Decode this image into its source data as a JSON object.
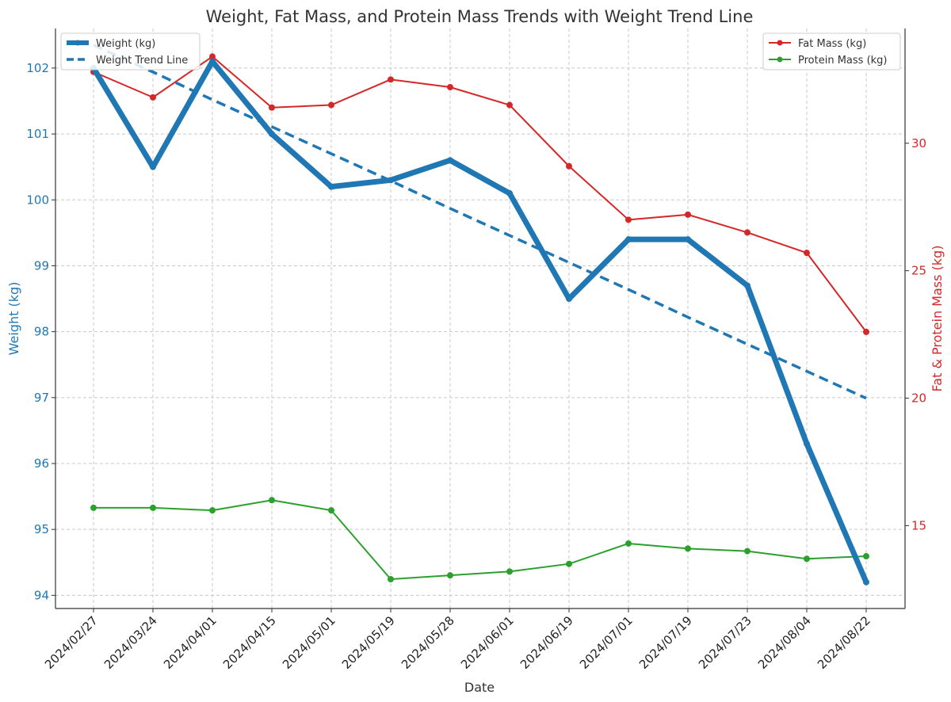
{
  "chart_data": {
    "type": "line",
    "title": "Weight, Fat Mass, and Protein Mass Trends with Weight Trend Line",
    "xlabel": "Date",
    "ylabel_left": "Weight (kg)",
    "ylabel_right": "Fat & Protein Mass (kg)",
    "categories": [
      "2024/02/27",
      "2024/03/24",
      "2024/04/01",
      "2024/04/15",
      "2024/05/01",
      "2024/05/19",
      "2024/05/28",
      "2024/06/01",
      "2024/06/19",
      "2024/07/01",
      "2024/07/19",
      "2024/07/23",
      "2024/08/04",
      "2024/08/22"
    ],
    "ylim_left": [
      93.8,
      102.6
    ],
    "ylim_right": [
      11.75,
      34.5
    ],
    "yticks_left": [
      94,
      95,
      96,
      97,
      98,
      99,
      100,
      101,
      102
    ],
    "yticks_right": [
      15,
      20,
      25,
      30
    ],
    "grid": true,
    "legend_left": "top-left",
    "legend_right": "top-right",
    "series": [
      {
        "name": "Weight (kg)",
        "axis": "left",
        "style": "thick-solid-markers",
        "color": "#1f77b4",
        "values": [
          102.0,
          100.5,
          102.1,
          101.0,
          100.2,
          100.3,
          100.6,
          100.1,
          98.5,
          99.4,
          99.4,
          98.7,
          96.3,
          94.2
        ]
      },
      {
        "name": "Weight Trend Line",
        "axis": "left",
        "style": "dashed",
        "color": "#1f77b4",
        "values": [
          102.35,
          101.94,
          101.52,
          101.11,
          100.7,
          100.29,
          99.87,
          99.46,
          99.05,
          98.64,
          98.22,
          97.81,
          97.4,
          96.99
        ]
      },
      {
        "name": "Fat Mass (kg)",
        "axis": "right",
        "style": "solid-markers",
        "color": "#d62728",
        "values": [
          32.8,
          31.8,
          33.4,
          31.4,
          31.5,
          32.5,
          32.2,
          31.5,
          29.1,
          27.0,
          27.2,
          26.5,
          25.7,
          22.6
        ]
      },
      {
        "name": "Protein Mass (kg)",
        "axis": "right",
        "style": "solid-markers",
        "color": "#2ca02c",
        "values": [
          15.7,
          15.7,
          15.6,
          16.0,
          15.6,
          12.9,
          13.05,
          13.2,
          13.5,
          14.3,
          14.1,
          14.0,
          13.7,
          13.8
        ]
      }
    ]
  }
}
